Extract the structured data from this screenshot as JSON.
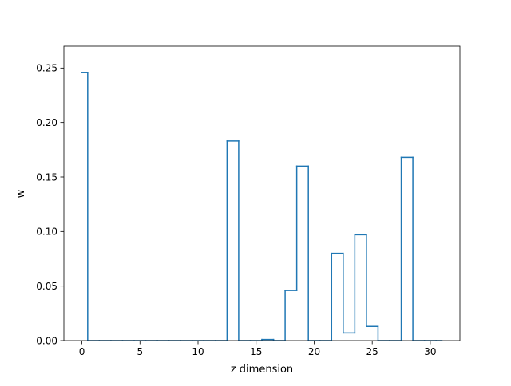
{
  "chart_data": {
    "type": "step",
    "title": "",
    "xlabel": "z dimension",
    "ylabel": "w",
    "xlim": [
      -1.55,
      32.55
    ],
    "ylim": [
      0.0,
      0.27
    ],
    "x_ticks": [
      0,
      5,
      10,
      15,
      20,
      25,
      30
    ],
    "x_tick_labels": [
      "0",
      "5",
      "10",
      "15",
      "20",
      "25",
      "30"
    ],
    "y_ticks": [
      0.0,
      0.05,
      0.1,
      0.15,
      0.2,
      0.25
    ],
    "y_tick_labels": [
      "0.00",
      "0.05",
      "0.10",
      "0.15",
      "0.20",
      "0.25"
    ],
    "grid": false,
    "series": [
      {
        "color": "#1f77b4",
        "step_where": "mid",
        "x": [
          0,
          1,
          2,
          3,
          4,
          5,
          6,
          7,
          8,
          9,
          10,
          11,
          12,
          13,
          14,
          15,
          16,
          17,
          18,
          19,
          20,
          21,
          22,
          23,
          24,
          25,
          26,
          27,
          28,
          29,
          30,
          31
        ],
        "values": [
          0.246,
          0,
          0,
          0,
          0,
          0,
          0,
          0,
          0,
          0,
          0,
          0,
          0,
          0.183,
          0,
          0,
          0.001,
          0,
          0.046,
          0.16,
          0,
          0,
          0.08,
          0.007,
          0.097,
          0.013,
          0,
          0,
          0.168,
          0,
          0,
          0
        ]
      }
    ]
  }
}
